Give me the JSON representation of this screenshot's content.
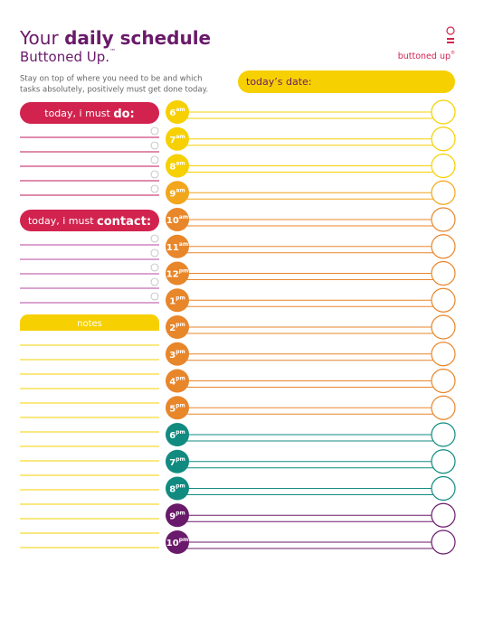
{
  "header": {
    "title_lead": "Your",
    "title_main": "daily schedule",
    "subtitle": "Buttoned Up.",
    "subtitle_mark": "™",
    "description": [
      "Stay on top of where you need to be and which",
      "tasks absolutely, positively must get done today."
    ]
  },
  "logo": {
    "text": "buttoned up",
    "mark": "®"
  },
  "date_box": {
    "label": "today’s date:"
  },
  "todo": {
    "prefix": "today, i must ",
    "emphasis": "do:"
  },
  "contact": {
    "prefix": "today, i must ",
    "emphasis": "contact:"
  },
  "notes": {
    "label": "notes"
  },
  "times": [
    {
      "hour": "6",
      "suffix": "am",
      "color": "#f6d000"
    },
    {
      "hour": "7",
      "suffix": "am",
      "color": "#f6d000"
    },
    {
      "hour": "8",
      "suffix": "am",
      "color": "#f6d000"
    },
    {
      "hour": "9",
      "suffix": "am",
      "color": "#f2a61c"
    },
    {
      "hour": "10",
      "suffix": "am",
      "color": "#e8862a"
    },
    {
      "hour": "11",
      "suffix": "am",
      "color": "#e8862a"
    },
    {
      "hour": "12",
      "suffix": "pm",
      "color": "#e8862a"
    },
    {
      "hour": "1",
      "suffix": "pm",
      "color": "#e8862a"
    },
    {
      "hour": "2",
      "suffix": "pm",
      "color": "#e8862a"
    },
    {
      "hour": "3",
      "suffix": "pm",
      "color": "#e8862a"
    },
    {
      "hour": "4",
      "suffix": "pm",
      "color": "#e8862a"
    },
    {
      "hour": "5",
      "suffix": "pm",
      "color": "#e8862a"
    },
    {
      "hour": "6",
      "suffix": "pm",
      "color": "#118b80"
    },
    {
      "hour": "7",
      "suffix": "pm",
      "color": "#118b80"
    },
    {
      "hour": "8",
      "suffix": "pm",
      "color": "#118b80"
    },
    {
      "hour": "9",
      "suffix": "pm",
      "color": "#6a1a6a"
    },
    {
      "hour": "10",
      "suffix": "pm",
      "color": "#6a1a6a"
    }
  ]
}
